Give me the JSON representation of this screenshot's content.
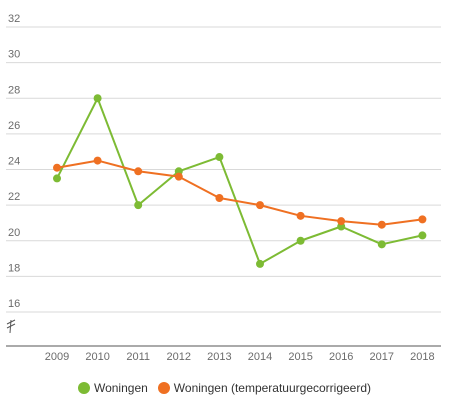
{
  "chart_data": {
    "type": "line",
    "title": "",
    "xlabel": "",
    "ylabel": "",
    "x": [
      "2009",
      "2010",
      "2011",
      "2012",
      "2013",
      "2014",
      "2015",
      "2016",
      "2017",
      "2018"
    ],
    "y_ticks": [
      "32",
      "30",
      "28",
      "26",
      "24",
      "22",
      "20",
      "18",
      "16"
    ],
    "ylim": [
      14,
      33
    ],
    "axis_break": true,
    "grid": "horizontal",
    "legend_position": "bottom",
    "series": [
      {
        "name": "Woningen",
        "color": "#7dbb34",
        "values": [
          23.5,
          28.0,
          22.0,
          23.9,
          24.7,
          18.7,
          20.0,
          20.8,
          19.8,
          20.3
        ]
      },
      {
        "name": "Woningen (temperatuurgecorrigeerd)",
        "color": "#ef7022",
        "values": [
          24.1,
          24.5,
          23.9,
          23.6,
          22.4,
          22.0,
          21.4,
          21.1,
          20.9,
          21.2
        ]
      }
    ]
  }
}
